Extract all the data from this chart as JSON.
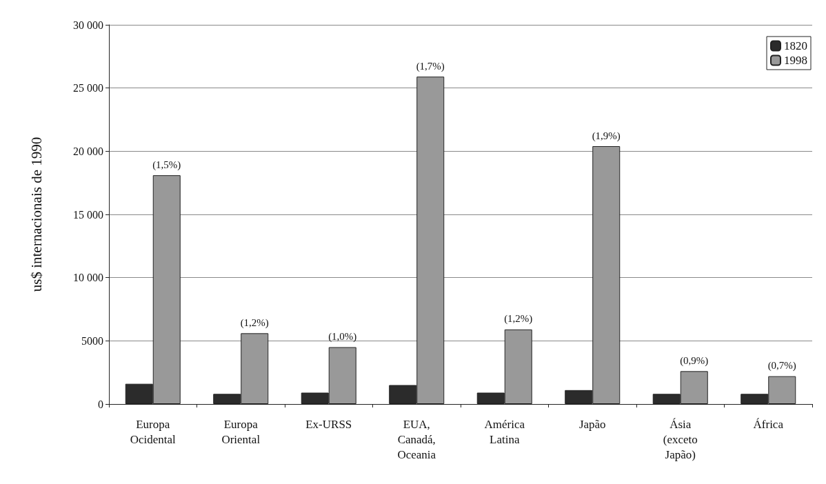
{
  "chart_data": {
    "type": "bar",
    "ylabel": "us$ internacionais de 1990",
    "categories": [
      "Europa\nOcidental",
      "Europa\nOriental",
      "Ex-URSS",
      "EUA,\nCanadá,\nOceania",
      "América\nLatina",
      "Japão",
      "Ásia\n(exceto\nJapão)",
      "África"
    ],
    "series": [
      {
        "name": "1820",
        "color": "#2b2b2b",
        "values": [
          1600,
          800,
          900,
          1500,
          900,
          1100,
          800,
          800
        ]
      },
      {
        "name": "1998",
        "color": "#999999",
        "values": [
          18100,
          5600,
          4500,
          25900,
          5900,
          20400,
          2600,
          2200
        ]
      }
    ],
    "annotations": [
      {
        "text": "(1,5%)",
        "x": "Europa\nOcidental",
        "y": 18100
      },
      {
        "text": "(1,2%)",
        "x": "Europa\nOriental",
        "y": 5600
      },
      {
        "text": "(1,0%)",
        "x": "Ex-URSS",
        "y": 4500
      },
      {
        "text": "(1,7%)",
        "x": "EUA,\nCanadá,\nOceania",
        "y": 25900
      },
      {
        "text": "(1,2%)",
        "x": "América\nLatina",
        "y": 5900
      },
      {
        "text": "(1,9%)",
        "x": "Japão",
        "y": 20400
      },
      {
        "text": "(0,9%)",
        "x": "Ásia\n(exceto\nJapão)",
        "y": 2600
      },
      {
        "text": "(0,7%)",
        "x": "África",
        "y": 2200
      }
    ],
    "ylim": [
      0,
      30000
    ],
    "yticks": [
      0,
      {
        "value": 5000,
        "label": "5000"
      },
      {
        "value": 10000,
        "label": "10 000"
      },
      {
        "value": 15000,
        "label": "15 000"
      },
      {
        "value": 20000,
        "label": "20 000"
      },
      {
        "value": 25000,
        "label": "25 000"
      },
      {
        "value": 30000,
        "label": "30 000"
      }
    ],
    "grid": "y",
    "legend": "top right"
  }
}
